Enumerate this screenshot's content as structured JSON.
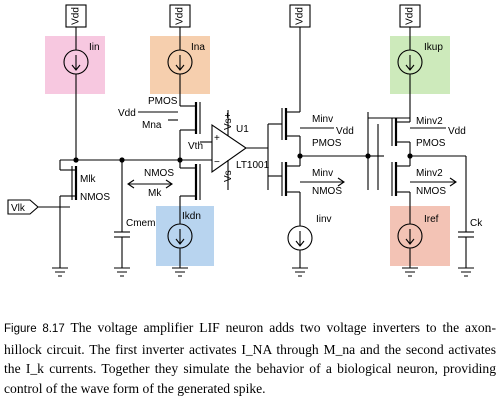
{
  "diagram": {
    "supply_labels": [
      "Vdd",
      "Vdd",
      "Vdd",
      "Vdd"
    ],
    "input_label": "Vlk",
    "current_sources": [
      {
        "label": "Iin",
        "color": "#f7c8e0"
      },
      {
        "label": "Ina",
        "color": "#f6cfae"
      },
      {
        "label": "Ikdn",
        "color": "#b8d4ef"
      },
      {
        "label": "Iinv",
        "color": ""
      },
      {
        "label": "Ikup",
        "color": "#cdeabb"
      },
      {
        "label": "Iref",
        "color": "#f3c3b5"
      }
    ],
    "transistor_labels": {
      "mlk": "Mlk",
      "nmos_lk": "NMOS",
      "pmos_na": "PMOS",
      "vdd_na": "Vdd",
      "mna": "Mna",
      "nmos_kdn": "NMOS",
      "mk": "Mk",
      "minv_p": "Minv",
      "vdd_inv": "Vdd",
      "pmos_inv": "PMOS",
      "minv_n": "Minv",
      "nmos_inv": "NMOS",
      "minv2_p": "Minv2",
      "vdd_inv2": "Vdd",
      "pmos_inv2": "PMOS",
      "minv2_n": "Minv2",
      "nmos_inv2": "NMOS"
    },
    "opamp": {
      "vth": "Vth",
      "u1": "U1",
      "vsp": "Vs+",
      "vsn": "Vs-",
      "part": "LT1001"
    },
    "capacitors": {
      "cmem": "Cmem",
      "ck": "Ck"
    }
  },
  "caption": {
    "figure_label": "Figure 8.17",
    "text": "The voltage amplifier LIF neuron adds two voltage inverters to the axon-hillock circuit. The first inverter activates I_NA through M_na and the second activates the I_k currents. Together they simulate the behavior of a biological neuron, providing control of the wave form of the generated spike."
  }
}
